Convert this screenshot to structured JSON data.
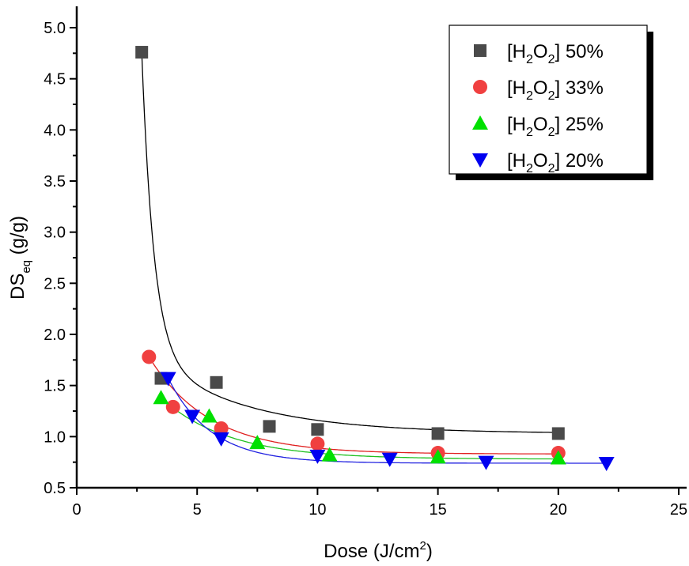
{
  "chart_data": {
    "type": "scatter",
    "xlabel": "Dose (J/cm",
    "xlabel_sup": "2",
    "xlabel_end": ")",
    "ylabel": "DS",
    "ylabel_sub": "eq",
    "ylabel_end": " (g/g)",
    "xlim": [
      0,
      25
    ],
    "ylim": [
      0.5,
      5.2
    ],
    "xticks": [
      "0",
      "5",
      "10",
      "15",
      "20",
      "25"
    ],
    "yticks": [
      "0.5",
      "1.0",
      "1.5",
      "2.0",
      "2.5",
      "3.0",
      "3.5",
      "4.0",
      "4.5",
      "5.0"
    ],
    "grid": false,
    "legend_position": "top-right",
    "series": [
      {
        "name": "[H2O2] 50%",
        "label_pre": "[H",
        "label_sub1": "2",
        "label_mid": "O",
        "label_sub2": "2",
        "label_post": "] 50%",
        "marker": "square",
        "color": "#4a4a4a",
        "line_color": "#000000",
        "x": [
          2.7,
          3.5,
          5.8,
          8,
          10,
          15,
          20
        ],
        "y": [
          4.76,
          1.57,
          1.53,
          1.1,
          1.07,
          1.03,
          1.03
        ]
      },
      {
        "name": "[H2O2] 33%",
        "label_pre": "[H",
        "label_sub1": "2",
        "label_mid": "O",
        "label_sub2": "2",
        "label_post": "] 33%",
        "marker": "circle",
        "color": "#f04040",
        "line_color": "#e02020",
        "x": [
          3,
          4,
          6,
          10,
          15,
          20
        ],
        "y": [
          1.78,
          1.29,
          1.08,
          0.93,
          0.84,
          0.84
        ]
      },
      {
        "name": "[H2O2] 25%",
        "label_pre": "[H",
        "label_sub1": "2",
        "label_mid": "O",
        "label_sub2": "2",
        "label_post": "] 25%",
        "marker": "triangle-up",
        "color": "#00e000",
        "line_color": "#20c020",
        "x": [
          3.5,
          5.5,
          7.5,
          10.5,
          15,
          20
        ],
        "y": [
          1.38,
          1.2,
          0.94,
          0.82,
          0.8,
          0.79
        ]
      },
      {
        "name": "[H2O2] 20%",
        "label_pre": "[H",
        "label_sub1": "2",
        "label_mid": "O",
        "label_sub2": "2",
        "label_post": "] 20%",
        "marker": "triangle-down",
        "color": "#0000f0",
        "line_color": "#2020e0",
        "x": [
          3.8,
          4.8,
          6,
          10,
          13,
          17,
          22
        ],
        "y": [
          1.57,
          1.2,
          0.98,
          0.81,
          0.78,
          0.75,
          0.74
        ]
      }
    ]
  }
}
